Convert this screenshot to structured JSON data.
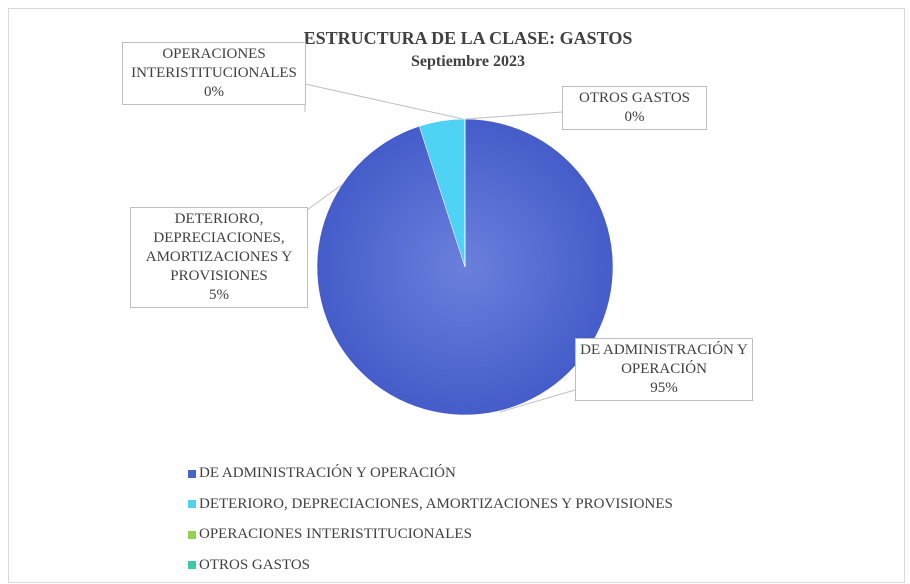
{
  "chart_data": {
    "type": "pie",
    "title": "ESTRUCTURA DE LA CLASE: GASTOS",
    "subtitle": "Septiembre 2023",
    "categories": [
      "DE ADMINISTRACIÓN Y OPERACIÓN",
      "DETERIORO, DEPRECIACIONES, AMORTIZACIONES Y PROVISIONES",
      "OPERACIONES INTERISTITUCIONALES",
      "OTROS GASTOS"
    ],
    "values": [
      95,
      5,
      0,
      0
    ],
    "value_labels": [
      "95%",
      "5%",
      "0%",
      "0%"
    ],
    "colors": [
      "#4a62cc",
      "#4fd3f5",
      "#92d050",
      "#3cc9a5"
    ],
    "legend": "bottom-left"
  }
}
